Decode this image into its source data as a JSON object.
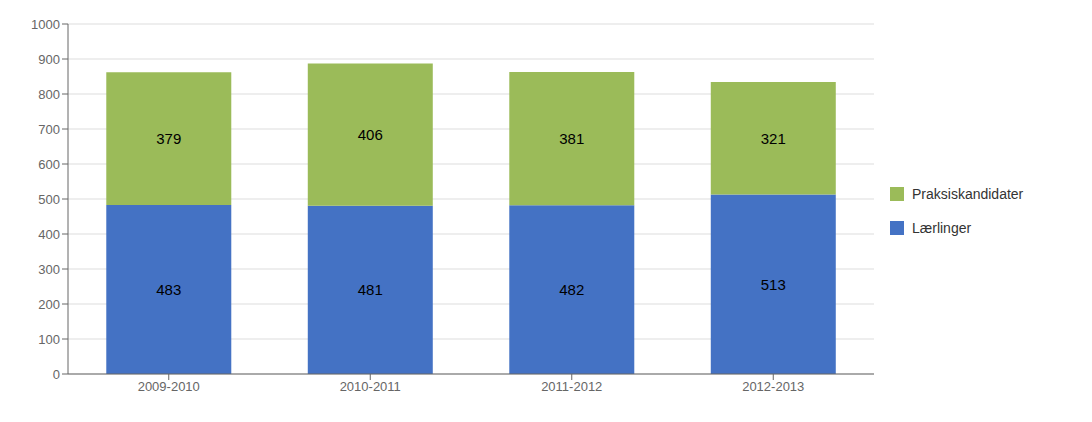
{
  "chart_data": {
    "type": "bar",
    "stacked": true,
    "categories": [
      "2009-2010",
      "2010-2011",
      "2011-2012",
      "2012-2013"
    ],
    "series": [
      {
        "name": "Lærlinger",
        "color": "#4472C4",
        "values": [
          483,
          481,
          482,
          513
        ]
      },
      {
        "name": "Praksiskandidater",
        "color": "#9BBB59",
        "values": [
          379,
          406,
          381,
          321
        ]
      }
    ],
    "ylim": [
      0,
      1000
    ],
    "yticks": [
      0,
      100,
      200,
      300,
      400,
      500,
      600,
      700,
      800,
      900,
      1000
    ],
    "grid": true,
    "legend": "right",
    "data_labels": true
  }
}
